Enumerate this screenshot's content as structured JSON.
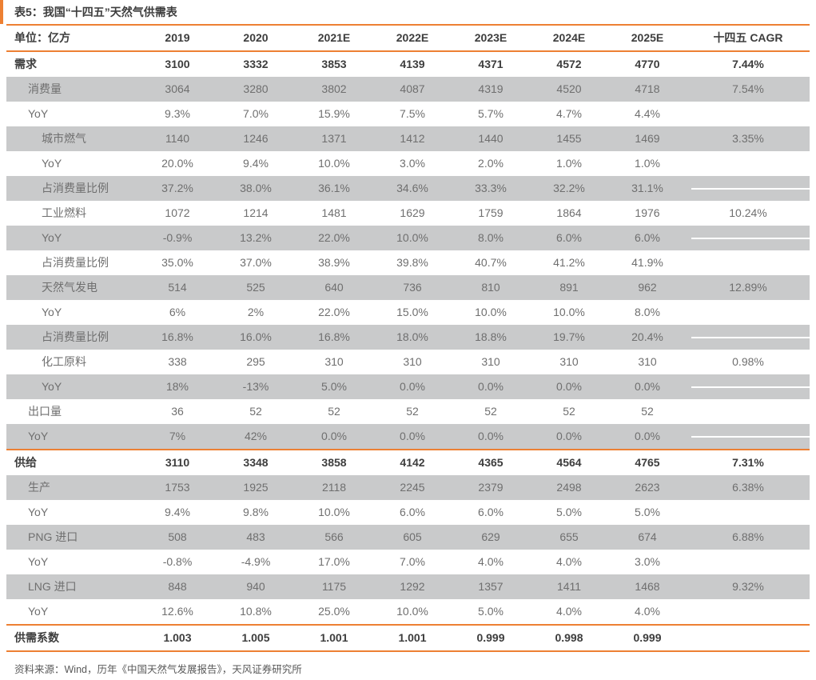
{
  "page": {
    "title": "表5：我国“十四五”天然气供需表",
    "source_note": "资料来源：Wind，历年《中国天然气发展报告》，天风证券研究所"
  },
  "colors": {
    "accent_orange": "#ED8033",
    "row_shade_gray": "#C9CACB",
    "text_dark": "#3D3D3D",
    "text_gray": "#6F6F6F"
  },
  "table": {
    "unit_label": "单位：亿方",
    "columns": [
      "2019",
      "2020",
      "2021E",
      "2022E",
      "2023E",
      "2024E",
      "2025E",
      "十四五 CAGR"
    ],
    "rows": [
      {
        "label": "需求",
        "indent": 0,
        "bold": true,
        "shaded": false,
        "values": [
          "3100",
          "3332",
          "3853",
          "4139",
          "4371",
          "4572",
          "4770",
          "7.44%"
        ]
      },
      {
        "label": "消费量",
        "indent": 1,
        "bold": false,
        "shaded": true,
        "values": [
          "3064",
          "3280",
          "3802",
          "4087",
          "4319",
          "4520",
          "4718",
          "7.54%"
        ]
      },
      {
        "label": "YoY",
        "indent": 1,
        "bold": false,
        "shaded": false,
        "values": [
          "9.3%",
          "7.0%",
          "15.9%",
          "7.5%",
          "5.7%",
          "4.7%",
          "4.4%",
          ""
        ]
      },
      {
        "label": "城市燃气",
        "indent": 2,
        "bold": false,
        "shaded": true,
        "values": [
          "1140",
          "1246",
          "1371",
          "1412",
          "1440",
          "1455",
          "1469",
          "3.35%"
        ]
      },
      {
        "label": "YoY",
        "indent": 2,
        "bold": false,
        "shaded": false,
        "values": [
          "20.0%",
          "9.4%",
          "10.0%",
          "3.0%",
          "2.0%",
          "1.0%",
          "1.0%",
          ""
        ]
      },
      {
        "label": "占消费量比例",
        "indent": 2,
        "bold": false,
        "shaded": true,
        "values": [
          "37.2%",
          "38.0%",
          "36.1%",
          "34.6%",
          "33.3%",
          "32.2%",
          "31.1%",
          ""
        ],
        "cagr_line": true
      },
      {
        "label": "工业燃料",
        "indent": 2,
        "bold": false,
        "shaded": false,
        "values": [
          "1072",
          "1214",
          "1481",
          "1629",
          "1759",
          "1864",
          "1976",
          "10.24%"
        ]
      },
      {
        "label": "YoY",
        "indent": 2,
        "bold": false,
        "shaded": true,
        "values": [
          "-0.9%",
          "13.2%",
          "22.0%",
          "10.0%",
          "8.0%",
          "6.0%",
          "6.0%",
          ""
        ],
        "cagr_line": true
      },
      {
        "label": "占消费量比例",
        "indent": 2,
        "bold": false,
        "shaded": false,
        "values": [
          "35.0%",
          "37.0%",
          "38.9%",
          "39.8%",
          "40.7%",
          "41.2%",
          "41.9%",
          ""
        ]
      },
      {
        "label": "天然气发电",
        "indent": 2,
        "bold": false,
        "shaded": true,
        "values": [
          "514",
          "525",
          "640",
          "736",
          "810",
          "891",
          "962",
          "12.89%"
        ]
      },
      {
        "label": "YoY",
        "indent": 2,
        "bold": false,
        "shaded": false,
        "values": [
          "6%",
          "2%",
          "22.0%",
          "15.0%",
          "10.0%",
          "10.0%",
          "8.0%",
          ""
        ]
      },
      {
        "label": "占消费量比例",
        "indent": 2,
        "bold": false,
        "shaded": true,
        "values": [
          "16.8%",
          "16.0%",
          "16.8%",
          "18.0%",
          "18.8%",
          "19.7%",
          "20.4%",
          ""
        ],
        "cagr_line": true
      },
      {
        "label": "化工原料",
        "indent": 2,
        "bold": false,
        "shaded": false,
        "values": [
          "338",
          "295",
          "310",
          "310",
          "310",
          "310",
          "310",
          "0.98%"
        ]
      },
      {
        "label": "YoY",
        "indent": 2,
        "bold": false,
        "shaded": true,
        "values": [
          "18%",
          "-13%",
          "5.0%",
          "0.0%",
          "0.0%",
          "0.0%",
          "0.0%",
          ""
        ],
        "cagr_line": true
      },
      {
        "label": "出口量",
        "indent": 1,
        "bold": false,
        "shaded": false,
        "values": [
          "36",
          "52",
          "52",
          "52",
          "52",
          "52",
          "52",
          ""
        ]
      },
      {
        "label": "YoY",
        "indent": 1,
        "bold": false,
        "shaded": true,
        "values": [
          "7%",
          "42%",
          "0.0%",
          "0.0%",
          "0.0%",
          "0.0%",
          "0.0%",
          ""
        ],
        "cagr_line": true,
        "divider_below": true
      },
      {
        "label": "供给",
        "indent": 0,
        "bold": true,
        "shaded": false,
        "values": [
          "3110",
          "3348",
          "3858",
          "4142",
          "4365",
          "4564",
          "4765",
          "7.31%"
        ]
      },
      {
        "label": "生产",
        "indent": 1,
        "bold": false,
        "shaded": true,
        "values": [
          "1753",
          "1925",
          "2118",
          "2245",
          "2379",
          "2498",
          "2623",
          "6.38%"
        ]
      },
      {
        "label": "YoY",
        "indent": 1,
        "bold": false,
        "shaded": false,
        "values": [
          "9.4%",
          "9.8%",
          "10.0%",
          "6.0%",
          "6.0%",
          "5.0%",
          "5.0%",
          ""
        ]
      },
      {
        "label": "PNG 进口",
        "indent": 1,
        "bold": false,
        "shaded": true,
        "values": [
          "508",
          "483",
          "566",
          "605",
          "629",
          "655",
          "674",
          "6.88%"
        ]
      },
      {
        "label": "YoY",
        "indent": 1,
        "bold": false,
        "shaded": false,
        "values": [
          "-0.8%",
          "-4.9%",
          "17.0%",
          "7.0%",
          "4.0%",
          "4.0%",
          "3.0%",
          ""
        ]
      },
      {
        "label": "LNG 进口",
        "indent": 1,
        "bold": false,
        "shaded": true,
        "values": [
          "848",
          "940",
          "1175",
          "1292",
          "1357",
          "1411",
          "1468",
          "9.32%"
        ]
      },
      {
        "label": "YoY",
        "indent": 1,
        "bold": false,
        "shaded": false,
        "values": [
          "12.6%",
          "10.8%",
          "25.0%",
          "10.0%",
          "5.0%",
          "4.0%",
          "4.0%",
          ""
        ],
        "divider_below": true
      },
      {
        "label": "供需系数",
        "indent": 0,
        "bold": true,
        "shaded": false,
        "values": [
          "1.003",
          "1.005",
          "1.001",
          "1.001",
          "0.999",
          "0.998",
          "0.999",
          ""
        ],
        "divider_below": true
      }
    ]
  }
}
